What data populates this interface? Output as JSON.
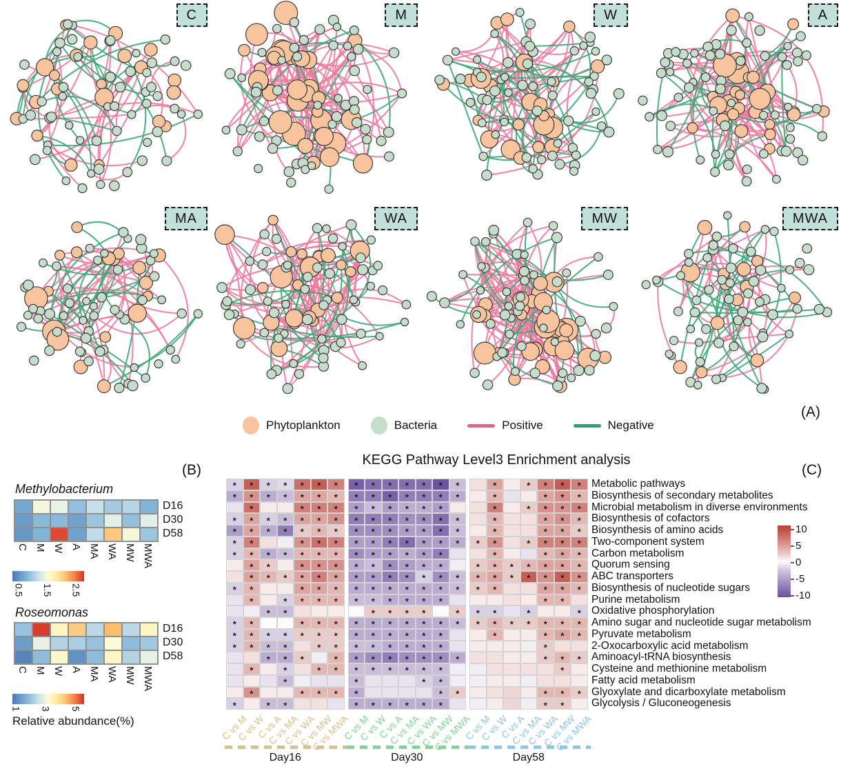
{
  "figure": {
    "panel_tags": {
      "a": "(A)",
      "b": "(B)",
      "c": "(C)"
    }
  },
  "chart_data": [
    {
      "type": "network",
      "panel": "A",
      "title": "Phytoplankton-bacteria co-occurrence networks",
      "node_colors": {
        "phytoplankton": "#F8C49E",
        "bacteria": "#C5DDCA"
      },
      "edge_colors": {
        "positive": "#EC7BA0",
        "negative": "#3EA87B"
      },
      "networks": [
        {
          "label": "C",
          "phytoplankton_nodes": 24,
          "bacteria_nodes": 52,
          "positive_edges": 42,
          "negative_edges": 30
        },
        {
          "label": "M",
          "phytoplankton_nodes": 34,
          "bacteria_nodes": 52,
          "positive_edges": 115,
          "negative_edges": 20
        },
        {
          "label": "W",
          "phytoplankton_nodes": 24,
          "bacteria_nodes": 60,
          "positive_edges": 70,
          "negative_edges": 38
        },
        {
          "label": "A",
          "phytoplankton_nodes": 26,
          "bacteria_nodes": 62,
          "positive_edges": 95,
          "negative_edges": 32
        },
        {
          "label": "MA",
          "phytoplankton_nodes": 18,
          "bacteria_nodes": 54,
          "positive_edges": 48,
          "negative_edges": 26
        },
        {
          "label": "WA",
          "phytoplankton_nodes": 24,
          "bacteria_nodes": 58,
          "positive_edges": 95,
          "negative_edges": 32
        },
        {
          "label": "MW",
          "phytoplankton_nodes": 30,
          "bacteria_nodes": 56,
          "positive_edges": 130,
          "negative_edges": 28
        },
        {
          "label": "MWA",
          "phytoplankton_nodes": 14,
          "bacteria_nodes": 58,
          "positive_edges": 48,
          "negative_edges": 30
        }
      ],
      "legend": [
        {
          "label": "Phytoplankton",
          "swatch": "circle",
          "color": "#F8C49E"
        },
        {
          "label": "Bacteria",
          "swatch": "circle",
          "color": "#C5DDCA"
        },
        {
          "label": "Positive",
          "swatch": "line",
          "color": "#E5628C"
        },
        {
          "label": "Negative",
          "swatch": "line",
          "color": "#2EA170"
        }
      ]
    },
    {
      "type": "heatmap",
      "panel": "B",
      "title": "Methylobacterium",
      "rows": [
        "D16",
        "D30",
        "D58"
      ],
      "columns": [
        "C",
        "M",
        "W",
        "A",
        "MA",
        "WA",
        "MW",
        "MWA"
      ],
      "values": [
        [
          0.7,
          1.5,
          1.4,
          0.9,
          1.2,
          1.0,
          1.1,
          0.8
        ],
        [
          0.6,
          0.85,
          0.85,
          0.65,
          0.95,
          1.35,
          0.9,
          1.35
        ],
        [
          0.55,
          0.8,
          2.7,
          0.65,
          1.15,
          2.1,
          1.5,
          0.95
        ]
      ],
      "scale": {
        "min": 0.3,
        "max": 2.8,
        "ticks": [
          0.5,
          1.5,
          2.5
        ]
      }
    },
    {
      "type": "heatmap",
      "panel": "B",
      "title": "Roseomonas",
      "rows": [
        "D16",
        "D30",
        "D58"
      ],
      "columns": [
        "C",
        "M",
        "W",
        "A",
        "MA",
        "WA",
        "MW",
        "MWA"
      ],
      "values": [
        [
          2.0,
          5.5,
          3.4,
          4.2,
          2.4,
          4.4,
          2.4,
          3.4
        ],
        [
          1.4,
          2.9,
          2.3,
          2.2,
          2.0,
          3.2,
          1.9,
          2.1
        ],
        [
          1.0,
          1.9,
          3.3,
          1.2,
          1.9,
          3.4,
          2.3,
          2.9
        ]
      ],
      "scale": {
        "min": 0.8,
        "max": 5.6,
        "ticks": [
          1,
          3,
          5
        ]
      },
      "caption": "Relative abundance(%)"
    },
    {
      "type": "heatmap",
      "panel": "C",
      "title": "KEGG Pathway Level3 Enrichment analysis",
      "significance_marker": "*",
      "colorbar": {
        "max": 10,
        "min": -10,
        "ticks": [
          10,
          5,
          0,
          -5,
          -10
        ]
      },
      "column_groups": [
        {
          "name": "Day16",
          "color": "#DCBF85",
          "columns": [
            "C vs M",
            "C vs W",
            "C vs A",
            "C vs MA",
            "C vs WA",
            "C vs MW",
            "C vs MWA"
          ]
        },
        {
          "name": "Day30",
          "color": "#7FD694",
          "columns": [
            "C vs M",
            "C vs W",
            "C vs A",
            "C vs MA",
            "C vs WA",
            "C vs MW",
            "C vs MWA"
          ]
        },
        {
          "name": "Day58",
          "color": "#8CC6E8",
          "columns": [
            "C vs M",
            "C vs W",
            "C vs A",
            "C vs MA",
            "C vs WA",
            "C vs MW",
            "C vs MWA"
          ]
        }
      ],
      "rows": [
        {
          "name": "Metabolic pathways",
          "cells": [
            "-2*",
            "8*",
            "-2*",
            "-1.5*",
            "7*",
            "8*",
            "6*",
            "-9*",
            "-8*",
            "-8*",
            "-8*",
            "-8*",
            "-10*",
            "-3*",
            "1",
            "4*",
            "0.5",
            "2*",
            "6*",
            "8*",
            "6*"
          ]
        },
        {
          "name": "Biosynthesis of secondary metabolites",
          "cells": [
            "-4*",
            "5*",
            "-4*",
            "-3*",
            "4*",
            "4*",
            "3*",
            "-7*",
            "-7*",
            "-9*",
            "-7*",
            "-7*",
            "-7*",
            "-4*",
            "0.5",
            "3*",
            "-1",
            "0.5",
            "4*",
            "5*",
            "3*"
          ]
        },
        {
          "name": "Microbial metabolism in diverse environments",
          "cells": [
            "-1",
            "7*",
            "0.5",
            "0.5",
            "6*",
            "6*",
            "6*",
            "-5*",
            "-3*",
            "-5*",
            "-4*",
            "-4*",
            "-5*",
            "0.5",
            "1",
            "6*",
            "0.5",
            "2*",
            "5*",
            "5*",
            "6*"
          ]
        },
        {
          "name": "Biosynthesis of cofactors",
          "cells": [
            "-2*",
            "4*",
            "-2*",
            "-3*",
            "4*",
            "4*",
            "5*",
            "-7*",
            "-7*",
            "-7*",
            "-6*",
            "-6*",
            "-8*",
            "-3*",
            "1",
            "3*",
            "1",
            "1",
            "4*",
            "5*",
            "3*"
          ]
        },
        {
          "name": "Biosynthesis of amino acids",
          "cells": [
            "-5*",
            "4*",
            "-4*",
            "-7*",
            "2*",
            "3*",
            "2*",
            "-6*",
            "-6*",
            "-6*",
            "-5*",
            "-5*",
            "-8*",
            "-3*",
            "0.5",
            "3*",
            "1",
            "1",
            "4*",
            "4*",
            "2*"
          ]
        },
        {
          "name": "Two-component system",
          "cells": [
            "-2*",
            "6*",
            "1",
            "-0.5",
            "5*",
            "7*",
            "6*",
            "-5*",
            "-5*",
            "-7*",
            "-8*",
            "-5*",
            "-5*",
            "-4*",
            "2*",
            "5*",
            "1",
            "2*",
            "6*",
            "6*",
            "6*"
          ]
        },
        {
          "name": "Carbon metabolism",
          "cells": [
            "-2*",
            "3*",
            "-4*",
            "-3*",
            "3*",
            "3*",
            "3*",
            "-6*",
            "-5*",
            "-5*",
            "-4*",
            "-5*",
            "-7*",
            "-1",
            "1",
            "3*",
            "0.5",
            "-1",
            "3*",
            "4*",
            "3*"
          ]
        },
        {
          "name": "Quorum sensing",
          "cells": [
            "0.5",
            "4*",
            "2*",
            "0.5",
            "5*",
            "5*",
            "5*",
            "-4*",
            "-3*",
            "-6*",
            "-5*",
            "-4*",
            "-4*",
            "-0.5",
            "2*",
            "3*",
            "2*",
            "3*",
            "4*",
            "4*",
            "3*"
          ]
        },
        {
          "name": "ABC transporters",
          "cells": [
            "1",
            "4*",
            "3*",
            "2*",
            "4*",
            "6*",
            "4*",
            "-5*",
            "-5*",
            "-7*",
            "-6*",
            "-2*",
            "-6*",
            "-3*",
            "3*",
            "4*",
            "2*",
            "8*",
            "5*",
            "8*",
            "5*"
          ]
        },
        {
          "name": "Biosynthesis of nucleotide sugars",
          "cells": [
            "-2*",
            "3*",
            "0.5",
            "0.5",
            "4*",
            "4*",
            "3*",
            "-4*",
            "-4*",
            "-4*",
            "-4*",
            "-4*",
            "-4*",
            "-3*",
            "2*",
            "3*",
            "1",
            "1",
            "4*",
            "4*",
            "3*"
          ]
        },
        {
          "name": "Purine metabolism",
          "cells": [
            "-1",
            "3*",
            "0.5",
            "-2*",
            "3*",
            "3*",
            "3*",
            "-3*",
            "-3*",
            "-4*",
            "-4*",
            "-4*",
            "-4*",
            "-1",
            "0.5",
            "0.5",
            "1",
            "0.5",
            "3*",
            "3*",
            "1"
          ]
        },
        {
          "name": "Oxidative phosphorylation",
          "cells": [
            "-1",
            "-0.5",
            "-3*",
            "-3*",
            "1",
            "0.5",
            "0.5",
            "0",
            "2*",
            "2*",
            "2*",
            "2*",
            "0",
            "2*",
            "-2*",
            "-2*",
            "-1",
            "-2*",
            "0.5",
            "0.5",
            "-2*"
          ]
        },
        {
          "name": "Amino sugar and nucleotide sugar metabolism",
          "cells": [
            "-2*",
            "3*",
            "0",
            "0",
            "3*",
            "3*",
            "3*",
            "-4*",
            "-4*",
            "-4*",
            "-4*",
            "-4*",
            "-4*",
            "-3*",
            "2*",
            "3*",
            "2*",
            "2*",
            "3*",
            "3*",
            "3*"
          ]
        },
        {
          "name": "Pyruvate metabolism",
          "cells": [
            "-2*",
            "3*",
            "-2*",
            "-2*",
            "2*",
            "2*",
            "2*",
            "-4*",
            "-4*",
            "-4*",
            "-4*",
            "-4*",
            "-4*",
            "-1",
            "0.5",
            "3*",
            "0.5",
            "0.5",
            "3*",
            "4*",
            "3*"
          ]
        },
        {
          "name": "2-Oxocarboxylic acid metabolism",
          "cells": [
            "-2*",
            "3*",
            "-3*",
            "-3*",
            "1",
            "2*",
            "2*",
            "-3*",
            "-3*",
            "-4*",
            "-4*",
            "-4*",
            "-4*",
            "-1",
            "0.5",
            "0.5",
            "0.5",
            "-0.5",
            "2*",
            "1",
            "1"
          ]
        },
        {
          "name": "Aminoacyl-tRNA biosynthesis",
          "cells": [
            "-1",
            "1",
            "-4*",
            "-4*",
            "2*",
            "-0.5",
            "3*",
            "-5*",
            "-6*",
            "-7*",
            "-6*",
            "-6*",
            "-6*",
            "-4*",
            "1",
            "1",
            "0.5",
            "0.5",
            "2*",
            "3*",
            "2*"
          ]
        },
        {
          "name": "Cysteine and methionine metabolism",
          "cells": [
            "-1",
            "3*",
            "0.5",
            "-2*",
            "1",
            "3*",
            "3*",
            "-3*",
            "-3*",
            "-3*",
            "-3*",
            "-3*",
            "-3*",
            "-0.5",
            "-0.5",
            "1",
            "1",
            "1",
            "1",
            "2*",
            "0.5"
          ]
        },
        {
          "name": "Fatty acid metabolism",
          "cells": [
            "-1",
            "0.5",
            "-1",
            "-3*",
            "-0.5",
            "-1",
            "-1",
            "-3*",
            "-1",
            "-1",
            "-1",
            "-2*",
            "-3*",
            "-0.5",
            "-0.5",
            "0.5",
            "0.5",
            "-0.5",
            "1",
            "1",
            "0.5"
          ]
        },
        {
          "name": "Glyoxylate and dicarboxylate metabolism",
          "cells": [
            "0.5",
            "5*",
            "0.5",
            "0.5",
            "3*",
            "3*",
            "3*",
            "-4*",
            "-1",
            "-1",
            "-1",
            "-1",
            "-3*",
            "2*",
            "0.5",
            "1",
            "1.5",
            "0.5",
            "3*",
            "3*",
            "2*"
          ]
        },
        {
          "name": "Glycolysis / Gluconeogenesis",
          "cells": [
            "-2*",
            "0.5",
            "-3*",
            "-3*",
            "1",
            "1",
            "-1",
            "-4*",
            "-4*",
            "-4*",
            "-4*",
            "-4*",
            "-4*",
            "-1",
            "-0.5",
            "0.5",
            "1.5",
            "-0.5",
            "2*",
            "2*",
            "0.5"
          ]
        }
      ]
    }
  ]
}
